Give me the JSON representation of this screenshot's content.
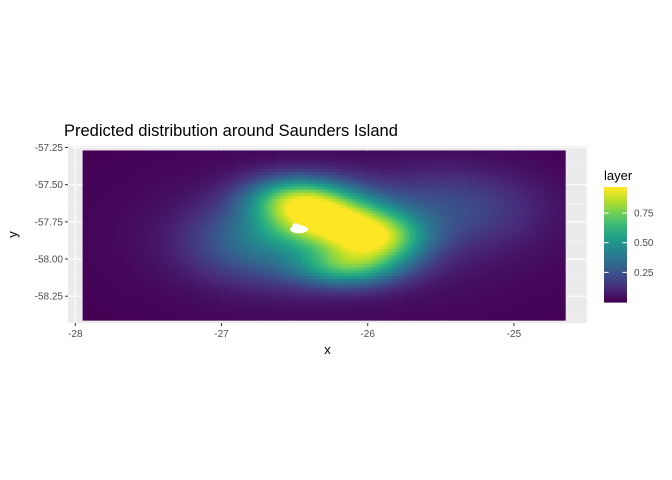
{
  "chart_data": {
    "type": "heatmap",
    "title": "Predicted distribution around Saunders Island",
    "xlabel": "x",
    "ylabel": "y",
    "xlim": [
      -28.05,
      -24.5
    ],
    "ylim": [
      -58.43,
      -57.24
    ],
    "x_ticks": [
      -28,
      -27,
      -26,
      -25
    ],
    "x_tick_labels": [
      "-28",
      "-27",
      "-26",
      "-25"
    ],
    "y_ticks": [
      -57.25,
      -57.5,
      -57.75,
      -58.0,
      -58.25
    ],
    "y_tick_labels": [
      "-57.25",
      "-57.50",
      "-57.75",
      "-58.00",
      "-58.25"
    ],
    "grid": true,
    "legend": {
      "title": "layer",
      "placement": "right",
      "range": [
        0,
        0.97
      ],
      "breaks": [
        0.25,
        0.5,
        0.75
      ],
      "break_labels": [
        "0.25",
        "0.50",
        "0.75"
      ],
      "colormap": "viridis"
    },
    "raster_extent": {
      "x": [
        -27.95,
        -24.65
      ],
      "y": [
        -58.41,
        -57.27
      ]
    },
    "island": {
      "x": -26.47,
      "y": -57.8,
      "value": null
    },
    "hotspots": [
      {
        "x": -26.3,
        "y": -57.72,
        "value": 0.95
      },
      {
        "x": -25.95,
        "y": -57.85,
        "value": 0.95
      },
      {
        "x": -26.15,
        "y": -58.0,
        "value": 0.85
      },
      {
        "x": -26.55,
        "y": -57.58,
        "value": 0.85
      }
    ]
  }
}
